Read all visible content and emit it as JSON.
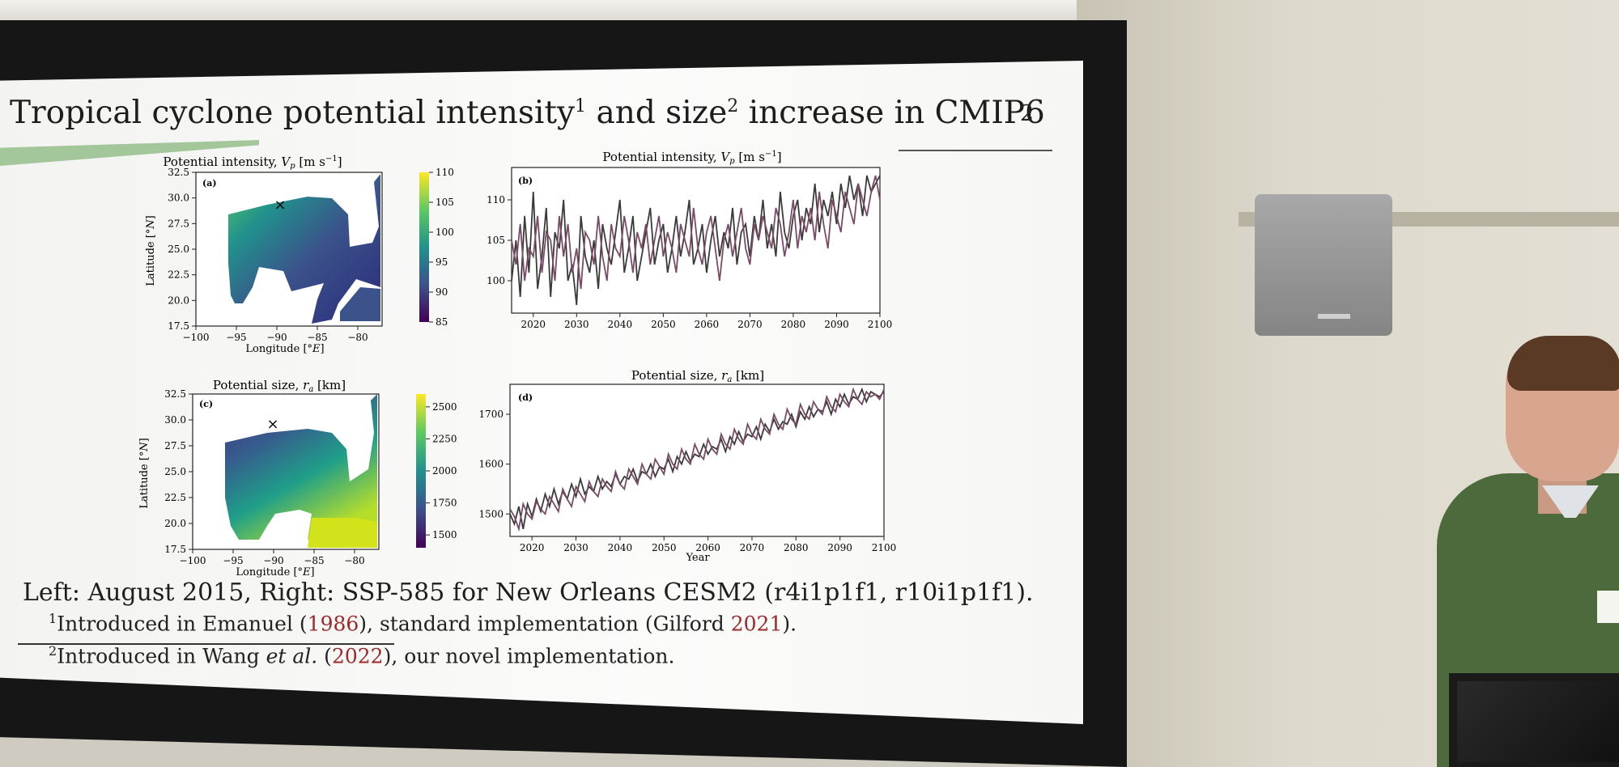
{
  "slide": {
    "title_main": "Tropical cyclone potential intensity",
    "title_sup1": "1",
    "title_mid": " and size",
    "title_sup2": "2",
    "title_end": " increase in CMIP6",
    "number": "2",
    "caption": "Left: August 2015, Right: SSP-585 for New Orleans CESM2 (r4i1p1f1, r10i1p1f1).",
    "footnote1": {
      "mark": "1",
      "text_a": "Introduced in Emanuel (",
      "year": "1986",
      "text_b": "), standard implementation (Gilford ",
      "year2": "2021",
      "text_c": ")."
    },
    "footnote2": {
      "mark": "2",
      "text_a": "Introduced in Wang ",
      "etal": "et al.",
      "text_b": " (",
      "year": "2022",
      "text_c": "), our novel implementation."
    }
  },
  "colors": {
    "viridis": [
      "#440154",
      "#3b528b",
      "#21918c",
      "#5ec962",
      "#fde725"
    ],
    "title_accent": "#a3c69a",
    "citation_red": "#9b2a2a"
  },
  "chart_data": [
    {
      "type": "heatmap",
      "panel": "(a)",
      "title": "Potential intensity, V_p [m s^-1]",
      "xlabel": "Longitude [°E]",
      "ylabel": "Latitude [°N]",
      "xticks": [
        "−100",
        "−95",
        "−90",
        "−85",
        "−80"
      ],
      "yticks": [
        "17.5",
        "20.0",
        "22.5",
        "25.0",
        "27.5",
        "30.0",
        "32.5"
      ],
      "xlim": [
        -100,
        -77
      ],
      "ylim": [
        17.5,
        32.5
      ],
      "colorbar_ticks": [
        "85",
        "90",
        "95",
        "100",
        "105",
        "110"
      ],
      "colorbar_range": [
        85,
        110
      ],
      "marker": "×"
    },
    {
      "type": "line",
      "panel": "(b)",
      "title": "Potential intensity, V_p [m s^-1]",
      "xlabel": "",
      "ylabel": "",
      "xticks": [
        "2020",
        "2030",
        "2040",
        "2050",
        "2060",
        "2070",
        "2080",
        "2090",
        "2100"
      ],
      "yticks": [
        "100",
        "105",
        "110"
      ],
      "xlim": [
        2015,
        2100
      ],
      "ylim": [
        96,
        114
      ],
      "series": [
        {
          "x_start": 2015,
          "values": [
            100,
            105,
            98,
            108,
            101,
            111,
            99,
            103,
            109,
            98,
            106,
            104,
            110,
            100,
            102,
            97,
            108,
            103,
            101,
            105,
            99,
            107,
            104,
            102,
            106,
            110,
            101,
            104,
            108,
            100,
            103,
            106,
            109,
            102,
            105,
            107,
            101,
            104,
            108,
            103,
            106,
            110,
            102,
            104,
            107,
            101,
            105,
            108,
            103,
            106,
            104,
            109,
            102,
            106,
            107,
            103,
            108,
            105,
            110,
            104,
            107,
            103,
            111,
            106,
            104,
            108,
            110,
            105,
            109,
            107,
            112,
            106,
            110,
            108,
            111,
            107,
            112,
            109,
            113,
            110,
            112,
            108,
            113,
            111,
            112,
            113
          ]
        },
        {
          "x_start": 2015,
          "values": [
            105,
            102,
            107,
            100,
            104,
            103,
            108,
            101,
            106,
            105,
            100,
            108,
            103,
            107,
            101,
            104,
            99,
            106,
            105,
            102,
            108,
            103,
            100,
            107,
            104,
            103,
            108,
            105,
            101,
            106,
            104,
            107,
            102,
            105,
            108,
            103,
            106,
            104,
            101,
            107,
            105,
            103,
            109,
            104,
            102,
            106,
            108,
            104,
            100,
            105,
            107,
            103,
            106,
            109,
            104,
            102,
            107,
            105,
            108,
            106,
            104,
            109,
            107,
            103,
            106,
            110,
            104,
            108,
            106,
            109,
            105,
            111,
            107,
            104,
            110,
            108,
            106,
            111,
            109,
            107,
            112,
            110,
            108,
            111,
            113,
            110
          ]
        }
      ]
    },
    {
      "type": "heatmap",
      "panel": "(c)",
      "title": "Potential size, r_a [km]",
      "xlabel": "Longitude [°E]",
      "ylabel": "Latitude [°N]",
      "xticks": [
        "−100",
        "−95",
        "−90",
        "−85",
        "−80"
      ],
      "yticks": [
        "17.5",
        "20.0",
        "22.5",
        "25.0",
        "27.5",
        "30.0",
        "32.5"
      ],
      "xlim": [
        -100,
        -77
      ],
      "ylim": [
        17.5,
        32.5
      ],
      "colorbar_ticks": [
        "1500",
        "1750",
        "2000",
        "2250",
        "2500"
      ],
      "colorbar_range": [
        1400,
        2600
      ],
      "marker": "×"
    },
    {
      "type": "line",
      "panel": "(d)",
      "title": "Potential size, r_a [km]",
      "xlabel": "Year",
      "ylabel": "",
      "xticks": [
        "2020",
        "2030",
        "2040",
        "2050",
        "2060",
        "2070",
        "2080",
        "2090",
        "2100"
      ],
      "yticks": [
        "1500",
        "1600",
        "1700"
      ],
      "xlim": [
        2015,
        2100
      ],
      "ylim": [
        1455,
        1760
      ],
      "series": [
        {
          "x_start": 2015,
          "values": [
            1500,
            1480,
            1515,
            1470,
            1520,
            1495,
            1530,
            1505,
            1540,
            1515,
            1550,
            1520,
            1545,
            1530,
            1560,
            1535,
            1570,
            1540,
            1555,
            1545,
            1575,
            1550,
            1565,
            1555,
            1580,
            1560,
            1575,
            1570,
            1590,
            1565,
            1585,
            1580,
            1600,
            1575,
            1595,
            1590,
            1610,
            1585,
            1615,
            1600,
            1625,
            1605,
            1620,
            1615,
            1640,
            1620,
            1635,
            1630,
            1650,
            1625,
            1655,
            1640,
            1665,
            1645,
            1660,
            1655,
            1675,
            1650,
            1680,
            1665,
            1690,
            1670,
            1685,
            1680,
            1700,
            1675,
            1705,
            1690,
            1715,
            1695,
            1710,
            1705,
            1725,
            1700,
            1730,
            1715,
            1740,
            1720,
            1735,
            1730,
            1750,
            1725,
            1745,
            1740,
            1735,
            1745
          ]
        },
        {
          "x_start": 2015,
          "values": [
            1510,
            1495,
            1470,
            1520,
            1500,
            1490,
            1525,
            1510,
            1500,
            1535,
            1520,
            1505,
            1550,
            1530,
            1515,
            1555,
            1540,
            1525,
            1565,
            1545,
            1535,
            1570,
            1555,
            1545,
            1585,
            1560,
            1550,
            1590,
            1575,
            1560,
            1600,
            1580,
            1570,
            1610,
            1595,
            1580,
            1620,
            1600,
            1590,
            1630,
            1610,
            1600,
            1640,
            1620,
            1610,
            1650,
            1630,
            1620,
            1660,
            1640,
            1630,
            1670,
            1650,
            1640,
            1680,
            1660,
            1650,
            1690,
            1670,
            1660,
            1700,
            1680,
            1670,
            1710,
            1690,
            1680,
            1720,
            1700,
            1690,
            1725,
            1710,
            1700,
            1735,
            1715,
            1705,
            1740,
            1725,
            1715,
            1750,
            1730,
            1720,
            1745,
            1735,
            1740,
            1730,
            1750
          ]
        }
      ]
    }
  ]
}
